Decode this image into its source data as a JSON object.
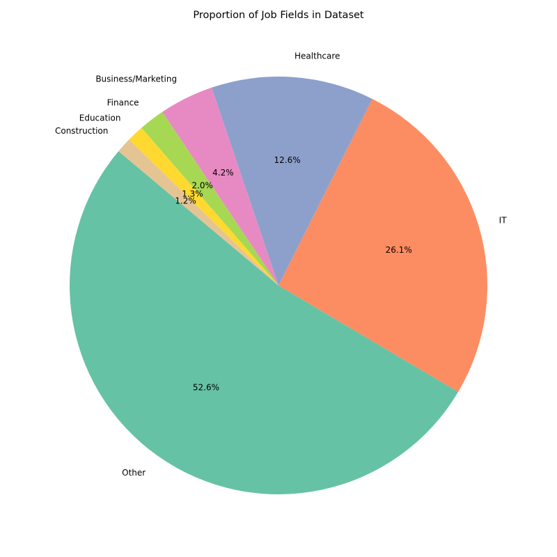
{
  "chart_data": {
    "type": "pie",
    "title": "Proportion of Job Fields in Dataset",
    "categories": [
      "Other",
      "IT",
      "Healthcare",
      "Business/Marketing",
      "Finance",
      "Education",
      "Construction"
    ],
    "values": [
      52.6,
      26.1,
      12.6,
      4.2,
      2.0,
      1.3,
      1.2
    ],
    "value_labels": [
      "52.6%",
      "26.1%",
      "12.6%",
      "4.2%",
      "2.0%",
      "1.3%",
      "1.2%"
    ],
    "colors": [
      "#66c2a5",
      "#fc8d62",
      "#8da0cb",
      "#e78ac3",
      "#a6d854",
      "#ffd92f",
      "#e5c494"
    ],
    "start_angle_deg": 140,
    "direction": "counterclockwise",
    "legend": "none"
  }
}
